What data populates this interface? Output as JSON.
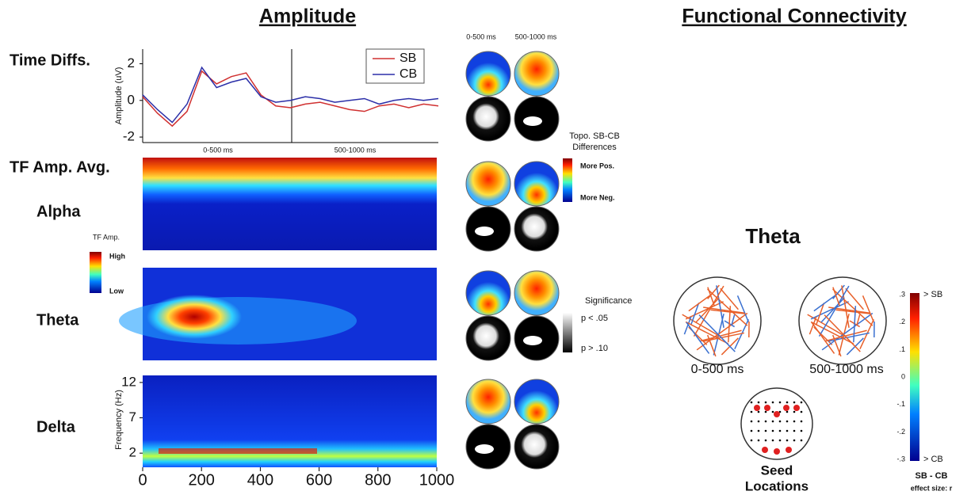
{
  "titles": {
    "amplitude": "Amplitude",
    "connectivity": "Functional Connectivity"
  },
  "row_labels": [
    "Time Diffs.",
    "TF Amp. Avg.",
    "Alpha",
    "Theta",
    "Delta"
  ],
  "chart_data": {
    "type": "line",
    "ylabel": "Amplitude (uV)",
    "x": [
      0,
      50,
      100,
      150,
      200,
      250,
      300,
      350,
      400,
      450,
      500,
      550,
      600,
      650,
      700,
      750,
      800,
      850,
      900,
      950,
      1000
    ],
    "series": [
      {
        "name": "SB",
        "color": "#d03030",
        "values": [
          0.2,
          -0.7,
          -1.4,
          -0.6,
          1.6,
          0.9,
          1.3,
          1.5,
          0.3,
          -0.3,
          -0.4,
          -0.2,
          -0.1,
          -0.3,
          -0.5,
          -0.6,
          -0.3,
          -0.2,
          -0.4,
          -0.2,
          -0.3
        ]
      },
      {
        "name": "CB",
        "color": "#2b2fa8",
        "values": [
          0.3,
          -0.5,
          -1.2,
          -0.2,
          1.8,
          0.7,
          1.0,
          1.2,
          0.2,
          -0.1,
          0.0,
          0.2,
          0.1,
          -0.1,
          0.0,
          0.1,
          -0.2,
          0.0,
          0.1,
          0.0,
          0.1
        ]
      }
    ],
    "xlim": [
      0,
      1000
    ],
    "ylim": [
      -2.3,
      2.8
    ],
    "yticks": [
      -2,
      0,
      2
    ],
    "segments": [
      "0-500 ms",
      "500-1000 ms"
    ]
  },
  "spectrogram_axis": {
    "ylabel": "Frequency (Hz)",
    "xlim": [
      0,
      1000
    ],
    "xticks": [
      0,
      200,
      400,
      600,
      800,
      1000
    ],
    "ylim": [
      0,
      13
    ],
    "yticks": [
      2,
      7,
      12
    ]
  },
  "tf_colorbar": {
    "title": "TF Amp.",
    "high": "High",
    "low": "Low"
  },
  "topo": {
    "windows": [
      "0-500 ms",
      "500-1000 ms"
    ],
    "diff_title": [
      "Topo. SB-CB",
      "Differences"
    ],
    "more_pos": "More Pos.",
    "more_neg": "More Neg.",
    "sig_title": "Significance",
    "sig_high": "p < .05",
    "sig_low": "p > .10"
  },
  "connectivity": {
    "band": "Theta",
    "windows": [
      "0-500 ms",
      "500-1000 ms"
    ],
    "seed": [
      "Seed",
      "Locations"
    ],
    "colorbar": {
      "ticks": [
        ".3",
        ".2",
        ".1",
        "0",
        "-.1",
        "-.2",
        "-.3"
      ],
      "top": "> SB",
      "bottom": "> CB",
      "label": "SB - CB",
      "sublabel": "effect size: r"
    }
  }
}
